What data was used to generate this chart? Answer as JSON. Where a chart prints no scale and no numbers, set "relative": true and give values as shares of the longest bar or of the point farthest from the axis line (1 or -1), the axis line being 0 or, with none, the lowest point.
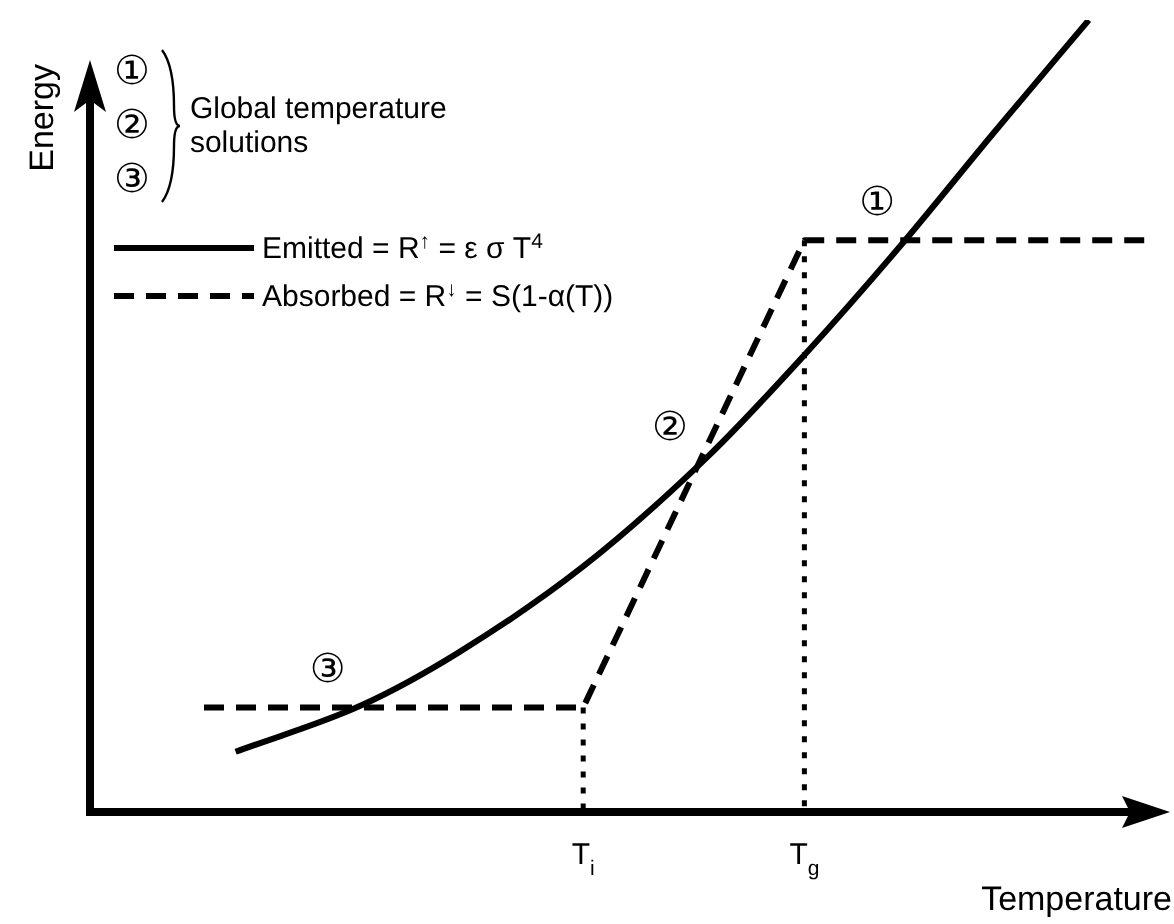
{
  "chart_data": {
    "type": "line",
    "relative": true,
    "xlabel": "Temperature",
    "ylabel": "Energy",
    "categories": [
      null,
      null,
      null,
      null,
      null,
      null,
      null,
      null,
      null,
      null,
      null,
      null,
      "T$_{i}$",
      null,
      null,
      null,
      null,
      null,
      null,
      "T$_{g}$",
      null,
      null,
      null,
      null,
      null,
      null,
      null,
      null,
      null,
      null,
      null
    ],
    "grid": false,
    "legend": "top left",
    "tick_labels": "x",
    "marker": "none",
    "series": [
      {
        "name": "Emitted = R$^{↑}$ = ε σ T$^{4}$",
        "color": "#000000",
        "line_style": "solid",
        "values": [
          null,
          0.076,
          null,
          null,
          null,
          0.135,
          null,
          null,
          0.2,
          null,
          null,
          null,
          0.31,
          null,
          null,
          null,
          0.451,
          null,
          null,
          0.577,
          null,
          null,
          0.713,
          null,
          null,
          0.858,
          null,
          null,
          1.0,
          null,
          null
        ]
      },
      {
        "name": "Absorbed = R$^{↓}$ = S(1-α(T))",
        "color": "#000000",
        "line_style": "dashed",
        "values": [
          0.132,
          null,
          null,
          null,
          null,
          null,
          null,
          null,
          null,
          null,
          null,
          null,
          0.132,
          null,
          null,
          null,
          null,
          null,
          null,
          0.722,
          null,
          null,
          null,
          null,
          null,
          null,
          null,
          null,
          null,
          null,
          0.722
        ]
      }
    ],
    "ref_lines": [
      {
        "axis": "x",
        "value": "T$_{i}$",
        "color": "#000000",
        "line_style": "dotted"
      },
      {
        "axis": "x",
        "value": "T$_{g}$",
        "color": "#000000",
        "line_style": "dotted"
      }
    ],
    "annotations": [
      "①",
      "②",
      "③",
      "Global temperature solutions",
      "①",
      "②",
      "③"
    ]
  }
}
